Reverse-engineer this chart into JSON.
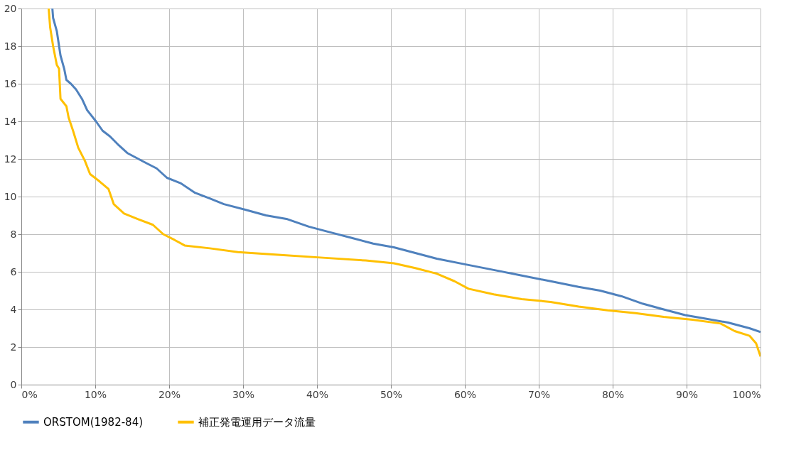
{
  "chart_data": {
    "type": "line",
    "xlim": [
      0,
      100
    ],
    "ylim": [
      0,
      20
    ],
    "xticks": [
      {
        "value": 0,
        "label": "0%"
      },
      {
        "value": 10,
        "label": "10%"
      },
      {
        "value": 20,
        "label": "20%"
      },
      {
        "value": 30,
        "label": "30%"
      },
      {
        "value": 40,
        "label": "40%"
      },
      {
        "value": 50,
        "label": "50%"
      },
      {
        "value": 60,
        "label": "60%"
      },
      {
        "value": 70,
        "label": "70%"
      },
      {
        "value": 80,
        "label": "80%"
      },
      {
        "value": 90,
        "label": "90%"
      },
      {
        "value": 100,
        "label": "100%"
      }
    ],
    "yticks": [
      0,
      2,
      4,
      6,
      8,
      10,
      12,
      14,
      16,
      18,
      20
    ],
    "grid": true,
    "legend": "bottom",
    "marker": "none",
    "line_style": "solid",
    "series": [
      {
        "name": "ORSTOM(1982-84)",
        "color": "#4f81bd",
        "x": [
          4.2,
          4.3,
          4.8,
          5.3,
          5.8,
          6.1,
          6.7,
          7.4,
          8.2,
          8.9,
          10.1,
          11,
          12,
          13,
          14.4,
          16.8,
          18.3,
          19.7,
          21.6,
          23.5,
          25.5,
          27.4,
          30.3,
          33.1,
          36,
          38.9,
          41.8,
          44.7,
          47.6,
          50.4,
          53.3,
          56.2,
          60,
          63.9,
          67.7,
          71.6,
          75.4,
          78.3,
          81.2,
          84.1,
          86.9,
          89.8,
          92.7,
          95.6,
          98.5,
          100
        ],
        "values": [
          20,
          19.5,
          18.8,
          17.5,
          16.8,
          16.2,
          16,
          15.7,
          15.2,
          14.6,
          14,
          13.5,
          13.2,
          12.8,
          12.3,
          11.8,
          11.5,
          11,
          10.7,
          10.2,
          9.9,
          9.6,
          9.3,
          9,
          8.8,
          8.4,
          8.1,
          7.8,
          7.5,
          7.3,
          7,
          6.7,
          6.4,
          6.1,
          5.8,
          5.5,
          5.2,
          5,
          4.7,
          4.3,
          4,
          3.7,
          3.5,
          3.3,
          3,
          2.8
        ]
      },
      {
        "name": "補正発電運用データ流量",
        "color": "#ffc000",
        "x": [
          3.7,
          3.9,
          4.3,
          4.8,
          5.1,
          5.3,
          6.1,
          6.4,
          7,
          7.7,
          8.6,
          9.3,
          10.6,
          11.8,
          12.5,
          13.9,
          15.8,
          17.8,
          19.2,
          20.7,
          22.1,
          25.5,
          29.3,
          35.1,
          40.8,
          46.6,
          50.4,
          53.3,
          56.2,
          58.6,
          60.5,
          63.9,
          67.7,
          71.6,
          75.4,
          79.3,
          83.1,
          86.9,
          90.8,
          94.6,
          96.5,
          98.5,
          99.4,
          100
        ],
        "values": [
          20,
          19,
          18,
          17,
          16.8,
          15.2,
          14.8,
          14.2,
          13.5,
          12.6,
          11.9,
          11.2,
          10.8,
          10.4,
          9.6,
          9.1,
          8.8,
          8.5,
          8,
          7.7,
          7.4,
          7.25,
          7.05,
          6.9,
          6.75,
          6.6,
          6.45,
          6.2,
          5.9,
          5.5,
          5.1,
          4.8,
          4.55,
          4.4,
          4.15,
          3.95,
          3.8,
          3.6,
          3.45,
          3.25,
          2.85,
          2.6,
          2.2,
          1.5
        ]
      }
    ]
  }
}
